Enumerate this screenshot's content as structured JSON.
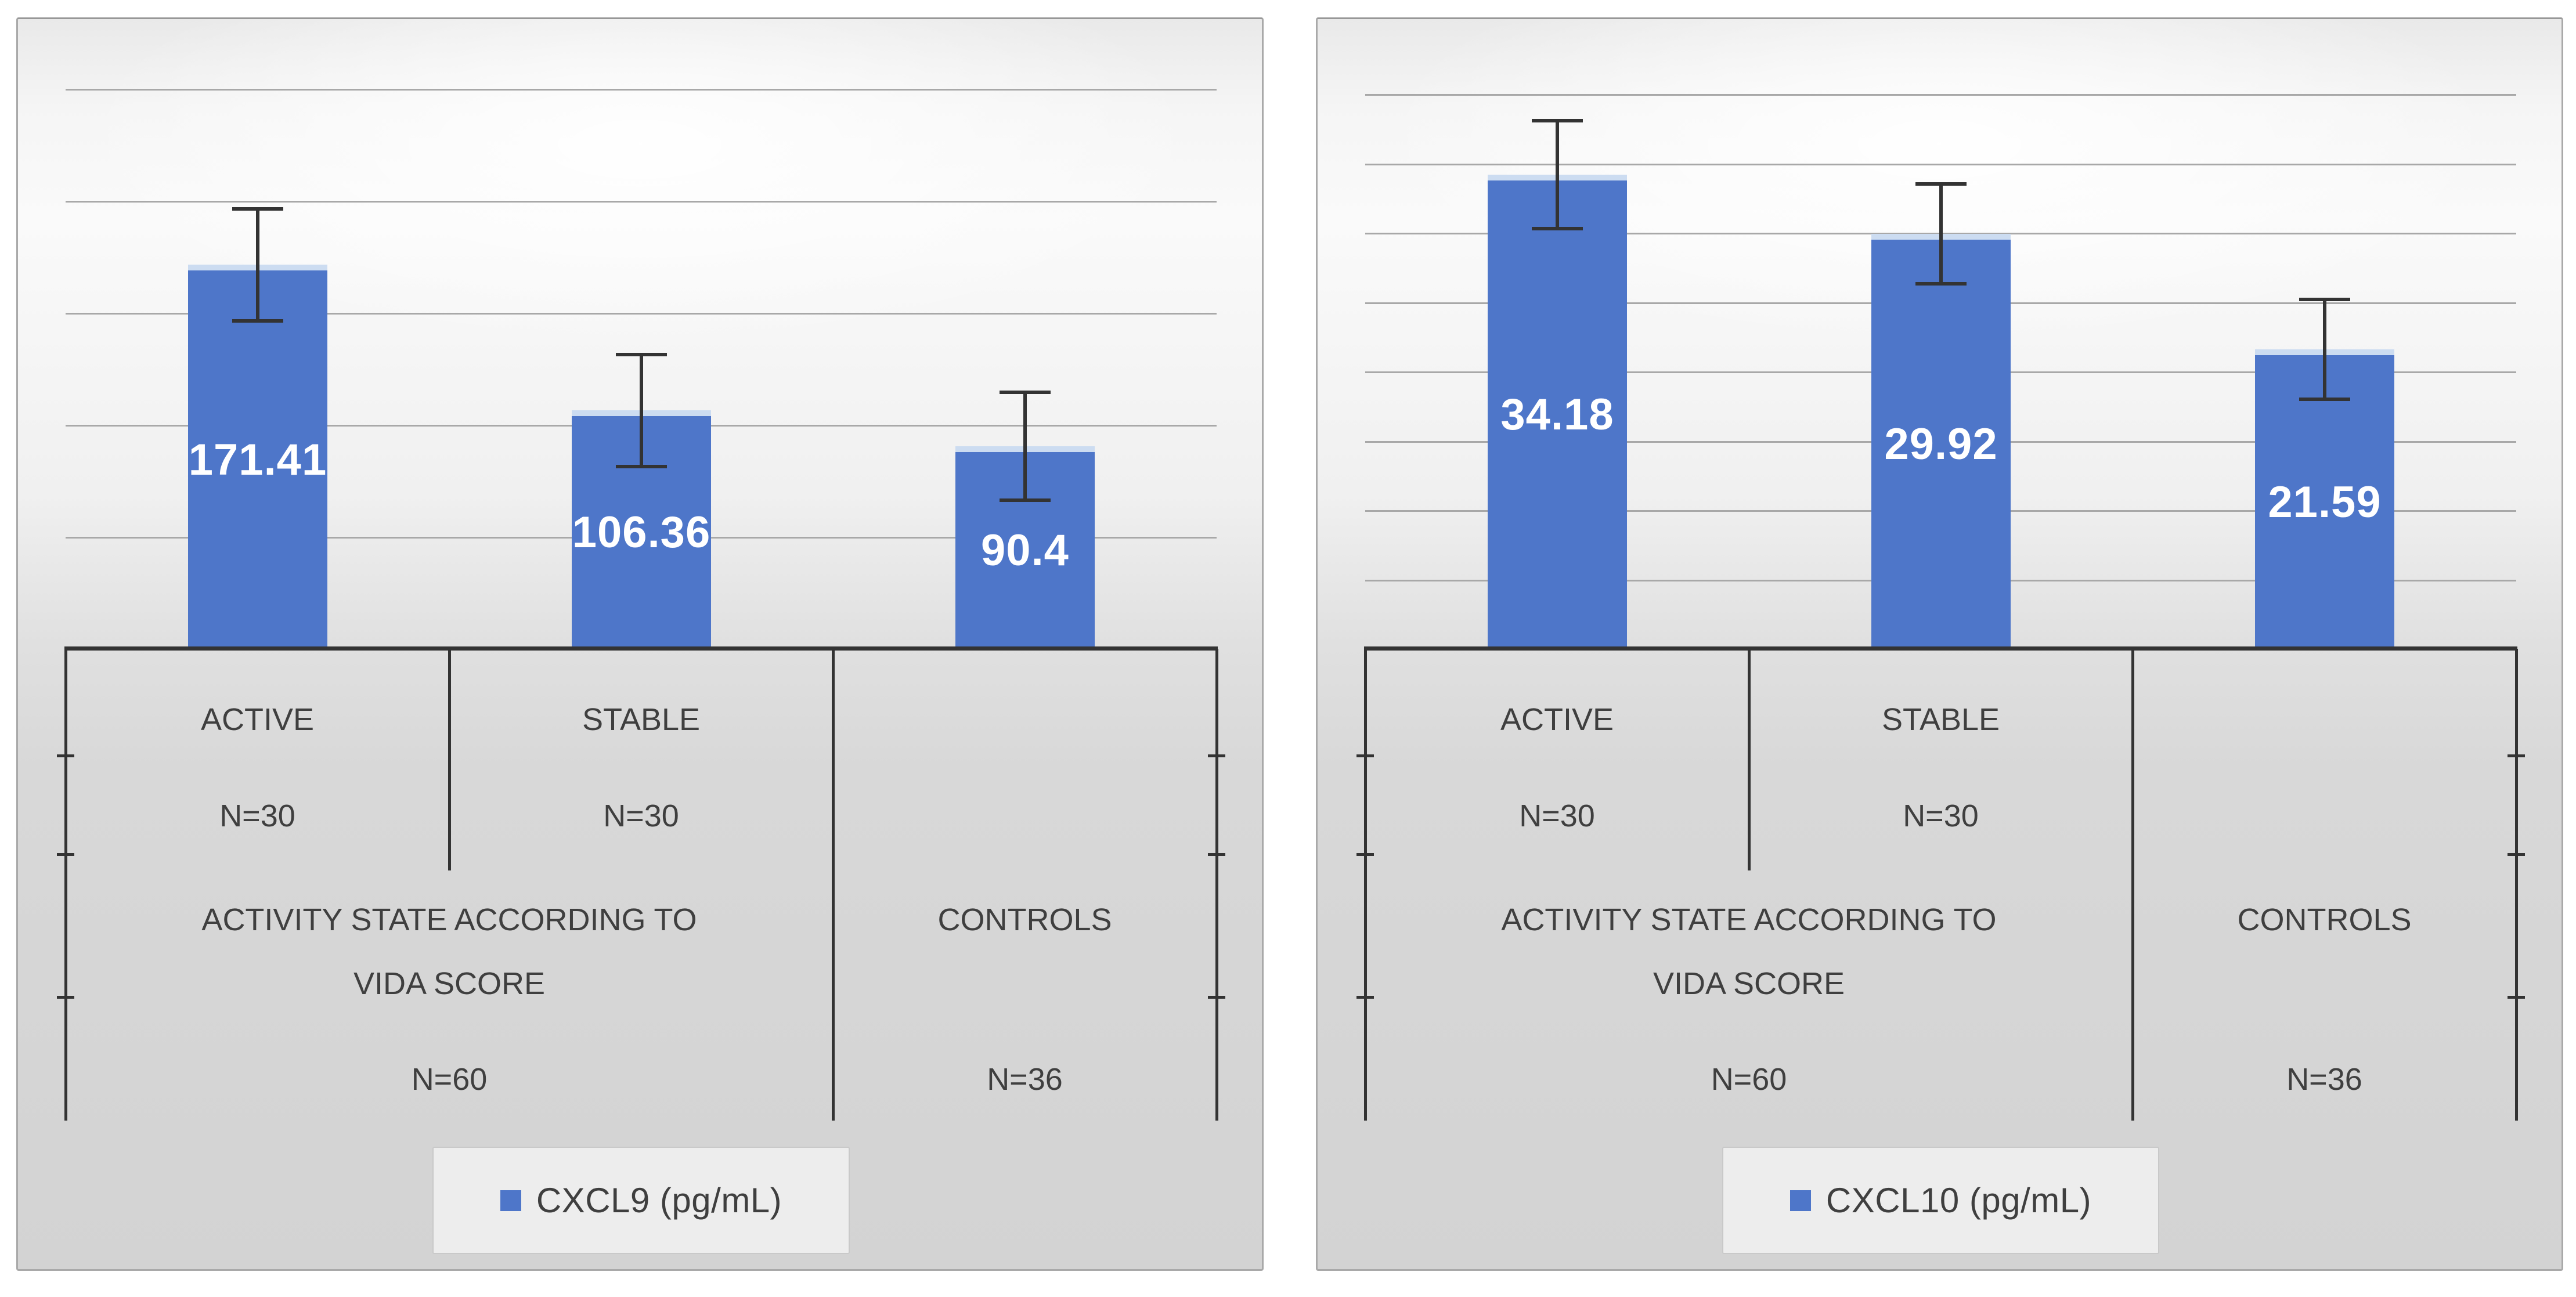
{
  "figure": {
    "description_note": "Two clustered column charts with error bars and multi-level category axes",
    "background": "#ffffff"
  },
  "style": {
    "bar_fill": "#4e76c9",
    "bar_top_edge": "#ccdcf1",
    "value_label_color": "#ffffff",
    "gridline_color": "#a8a8a8",
    "axis_line_color": "#333333",
    "axis_text_color": "#3f3f3f",
    "legend_bg": "#ededed",
    "legend_border": "#c9c9c9",
    "panel_border": "#a9a9a9"
  },
  "chart_data": [
    {
      "type": "bar",
      "title": "",
      "xlabel": "",
      "ylabel": "",
      "ylim": [
        0,
        281
      ],
      "grid_step": 50,
      "gridlines": [
        50,
        100,
        150,
        200,
        250
      ],
      "grid_on": true,
      "legend": {
        "label": "CXCL9 (pg/mL)",
        "position": "bottom",
        "swatch": "blue-square"
      },
      "categories": [
        "ACTIVE",
        "STABLE",
        "CONTROLS"
      ],
      "values": [
        171.41,
        106.36,
        90.4
      ],
      "bars": [
        {
          "value": 171.41,
          "label": "171.41",
          "error": 25
        },
        {
          "value": 106.36,
          "label": "106.36",
          "error": 25
        },
        {
          "value": 90.4,
          "label": "90.4",
          "error": 24
        }
      ],
      "axis_level1": [
        {
          "label": "ACTIVE",
          "n": "N=30"
        },
        {
          "label": "STABLE",
          "n": "N=30"
        },
        {
          "label": "",
          "n": ""
        }
      ],
      "axis_level2": [
        {
          "lines": [
            "ACTIVITY STATE ACCORDING TO",
            "VIDA SCORE"
          ],
          "n": "N=60",
          "span": 2
        },
        {
          "lines": [
            "CONTROLS"
          ],
          "n": "N=36",
          "span": 1
        }
      ]
    },
    {
      "type": "bar",
      "title": "",
      "xlabel": "",
      "ylabel": "",
      "ylim": [
        0,
        45.4
      ],
      "grid_step": 5,
      "gridlines": [
        5,
        10,
        15,
        20,
        25,
        30,
        35,
        40
      ],
      "grid_on": true,
      "legend": {
        "label": "CXCL10 (pg/mL)",
        "position": "bottom",
        "swatch": "blue-square"
      },
      "categories": [
        "ACTIVE",
        "STABLE",
        "CONTROLS"
      ],
      "values": [
        34.18,
        29.92,
        21.59
      ],
      "bars": [
        {
          "value": 34.18,
          "label": "34.18",
          "error": 3.9
        },
        {
          "value": 29.92,
          "label": "29.92",
          "error": 3.6
        },
        {
          "value": 21.59,
          "label": "21.59",
          "error": 3.6
        }
      ],
      "axis_level1": [
        {
          "label": "ACTIVE",
          "n": "N=30"
        },
        {
          "label": "STABLE",
          "n": "N=30"
        },
        {
          "label": "",
          "n": ""
        }
      ],
      "axis_level2": [
        {
          "lines": [
            "ACTIVITY STATE ACCORDING TO",
            "VIDA SCORE"
          ],
          "n": "N=60",
          "span": 2
        },
        {
          "lines": [
            "CONTROLS"
          ],
          "n": "N=36",
          "span": 1
        }
      ]
    }
  ]
}
